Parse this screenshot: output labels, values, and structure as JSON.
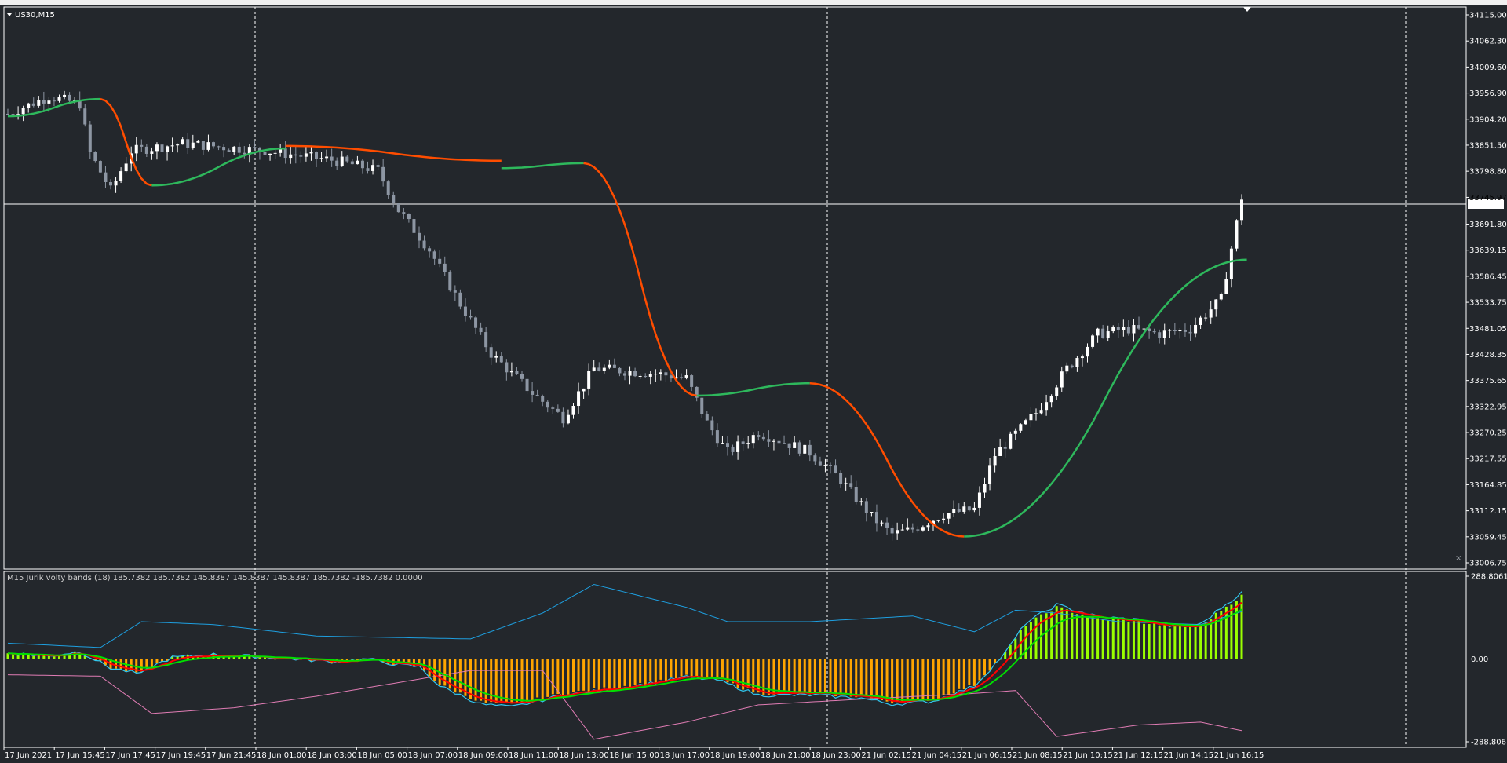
{
  "window": {
    "symbol_label": "US30,M15"
  },
  "indicator": {
    "label": "M15 Jurik volty bands (18) 185.7382 185.7382 145.8387 145.8387 145.8387 185.7382 -185.7382 0.0000"
  },
  "colors": {
    "background": "#23272c",
    "axis_text": "#ffffff",
    "bull_candle": "#ffffff",
    "bear_candle": "#8d96a3",
    "trail_up": "#2eb85c",
    "trail_down": "#ff4d00",
    "hist_pos": "#9aff00",
    "hist_neg": "#ffa500",
    "band_upper": "#1e9fe0",
    "band_lower": "#e07cb4",
    "fast_line": "#ff0000",
    "slow_line": "#00e000",
    "price_line": "#ffffff"
  },
  "chart_data": [
    {
      "type": "candlestick",
      "title": "US30,M15",
      "ylim": [
        33006.75,
        34115.0
      ],
      "y_ticks": [
        34115.0,
        34062.3,
        34009.6,
        33956.9,
        33904.2,
        33851.5,
        33798.8,
        33745.97,
        33691.8,
        33639.15,
        33586.45,
        33533.75,
        33481.05,
        33428.35,
        33375.65,
        33322.95,
        33270.25,
        33217.55,
        33164.85,
        33112.15,
        33059.45,
        33006.75
      ],
      "y_tick_labels": [
        "34115.00",
        "34062.30",
        "34009.60",
        "33956.90",
        "33904.20",
        "33851.50",
        "33798.80",
        "33745.97",
        "33691.80",
        "33639.15",
        "33586.45",
        "33533.75",
        "33481.05",
        "33428.35",
        "33375.65",
        "33322.95",
        "33270.25",
        "33217.55",
        "33164.85",
        "33112.15",
        "33059.45",
        "33006.75"
      ],
      "current_price": 33745.97,
      "x_tick_labels": [
        "17 Jun 2021",
        "17 Jun 15:45",
        "17 Jun 17:45",
        "17 Jun 19:45",
        "17 Jun 21:45",
        "18 Jun 01:00",
        "18 Jun 03:00",
        "18 Jun 05:00",
        "18 Jun 07:00",
        "18 Jun 09:00",
        "18 Jun 11:00",
        "18 Jun 13:00",
        "18 Jun 15:00",
        "18 Jun 17:00",
        "18 Jun 19:00",
        "18 Jun 21:00",
        "18 Jun 23:00",
        "21 Jun 02:15",
        "21 Jun 04:15",
        "21 Jun 06:15",
        "21 Jun 08:15",
        "21 Jun 10:15",
        "21 Jun 12:15",
        "21 Jun 14:15",
        "21 Jun 16:15"
      ],
      "price_path": [
        [
          0,
          33915
        ],
        [
          8,
          33950
        ],
        [
          14,
          33935
        ],
        [
          16,
          33835
        ],
        [
          20,
          33760
        ],
        [
          24,
          33840
        ],
        [
          34,
          33855
        ],
        [
          50,
          33840
        ],
        [
          64,
          33820
        ],
        [
          72,
          33800
        ],
        [
          76,
          33720
        ],
        [
          82,
          33640
        ],
        [
          88,
          33530
        ],
        [
          94,
          33430
        ],
        [
          102,
          33350
        ],
        [
          108,
          33300
        ],
        [
          114,
          33400
        ],
        [
          126,
          33390
        ],
        [
          132,
          33380
        ],
        [
          136,
          33290
        ],
        [
          140,
          33230
        ],
        [
          146,
          33270
        ],
        [
          150,
          33255
        ],
        [
          156,
          33230
        ],
        [
          162,
          33175
        ],
        [
          168,
          33100
        ],
        [
          172,
          33065
        ],
        [
          176,
          33075
        ],
        [
          182,
          33105
        ],
        [
          188,
          33115
        ],
        [
          192,
          33225
        ],
        [
          200,
          33310
        ],
        [
          206,
          33400
        ],
        [
          212,
          33470
        ],
        [
          218,
          33480
        ],
        [
          224,
          33470
        ],
        [
          230,
          33480
        ],
        [
          236,
          33540
        ],
        [
          240,
          33745.97
        ]
      ],
      "trailing_stop": [
        {
          "trend": "up",
          "from_bar": 0,
          "to_bar": 18,
          "level_start": 33910,
          "level_end": 33945
        },
        {
          "trend": "down",
          "from_bar": 18,
          "to_bar": 28,
          "level_start": 33945,
          "level_end": 33770
        },
        {
          "trend": "up",
          "from_bar": 28,
          "to_bar": 54,
          "level_start": 33770,
          "level_end": 33845
        },
        {
          "trend": "down",
          "from_bar": 54,
          "to_bar": 96,
          "level_start": 33850,
          "level_end": 33820
        },
        {
          "trend": "up",
          "from_bar": 96,
          "to_bar": 112,
          "level_start": 33805,
          "level_end": 33815
        },
        {
          "trend": "down",
          "from_bar": 112,
          "to_bar": 134,
          "level_start": 33815,
          "level_end": 33345
        },
        {
          "trend": "up",
          "from_bar": 134,
          "to_bar": 156,
          "level_start": 33345,
          "level_end": 33370
        },
        {
          "trend": "down",
          "from_bar": 156,
          "to_bar": 186,
          "level_start": 33370,
          "level_end": 33060
        },
        {
          "trend": "up",
          "from_bar": 186,
          "to_bar": 241,
          "level_start": 33060,
          "level_end": 33620
        }
      ]
    },
    {
      "type": "histogram",
      "title": "M15 Jurik volty bands (18)",
      "ylim": [
        -288.8061,
        288.8061
      ],
      "y_ticks": [
        288.8061,
        0.0,
        -288.8061
      ],
      "y_tick_labels": [
        "288.8061",
        "0.00",
        "-288.8061"
      ],
      "hist_path": [
        [
          0,
          20
        ],
        [
          8,
          10
        ],
        [
          14,
          25
        ],
        [
          20,
          -30
        ],
        [
          26,
          -50
        ],
        [
          28,
          -25
        ],
        [
          32,
          5
        ],
        [
          40,
          15
        ],
        [
          52,
          5
        ],
        [
          64,
          -10
        ],
        [
          70,
          0
        ],
        [
          76,
          -20
        ],
        [
          80,
          -25
        ],
        [
          84,
          -90
        ],
        [
          92,
          -150
        ],
        [
          98,
          -160
        ],
        [
          108,
          -120
        ],
        [
          118,
          -100
        ],
        [
          132,
          -60
        ],
        [
          138,
          -70
        ],
        [
          146,
          -120
        ],
        [
          156,
          -120
        ],
        [
          166,
          -130
        ],
        [
          172,
          -150
        ],
        [
          180,
          -140
        ],
        [
          188,
          -90
        ],
        [
          194,
          20
        ],
        [
          198,
          120
        ],
        [
          204,
          180
        ],
        [
          212,
          140
        ],
        [
          220,
          130
        ],
        [
          226,
          110
        ],
        [
          232,
          115
        ],
        [
          236,
          170
        ],
        [
          240,
          220
        ]
      ],
      "upper_band_path": [
        [
          0,
          55
        ],
        [
          18,
          40
        ],
        [
          26,
          130
        ],
        [
          40,
          120
        ],
        [
          60,
          80
        ],
        [
          90,
          70
        ],
        [
          104,
          160
        ],
        [
          114,
          260
        ],
        [
          132,
          180
        ],
        [
          140,
          130
        ],
        [
          156,
          130
        ],
        [
          176,
          150
        ],
        [
          188,
          95
        ],
        [
          196,
          170
        ],
        [
          204,
          160
        ],
        [
          216,
          130
        ],
        [
          232,
          120
        ],
        [
          240,
          165
        ]
      ],
      "lower_band_path": [
        [
          0,
          -55
        ],
        [
          18,
          -60
        ],
        [
          28,
          -190
        ],
        [
          44,
          -170
        ],
        [
          60,
          -130
        ],
        [
          90,
          -40
        ],
        [
          104,
          -40
        ],
        [
          114,
          -280
        ],
        [
          132,
          -220
        ],
        [
          146,
          -160
        ],
        [
          166,
          -140
        ],
        [
          188,
          -120
        ],
        [
          196,
          -110
        ],
        [
          204,
          -270
        ],
        [
          212,
          -250
        ],
        [
          220,
          -230
        ],
        [
          232,
          -220
        ],
        [
          240,
          -250
        ]
      ]
    }
  ]
}
